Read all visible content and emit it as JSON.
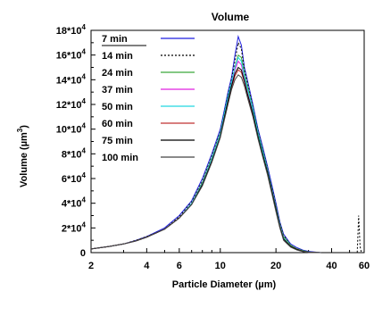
{
  "chart_data": {
    "type": "line",
    "title": "Volume",
    "xlabel": "Particle Diameter (µm)",
    "ylabel_base": "Volume (µm",
    "ylabel_sup": "3",
    "ylabel_end": ")",
    "x_scale": "log",
    "xlim": [
      2,
      60
    ],
    "ylim": [
      0,
      180000
    ],
    "x_ticks": [
      {
        "value": 2,
        "label": "2"
      },
      {
        "value": 4,
        "label": "4"
      },
      {
        "value": 6,
        "label": "6"
      },
      {
        "value": 10,
        "label": "10"
      },
      {
        "value": 20,
        "label": "20"
      },
      {
        "value": 40,
        "label": "40"
      },
      {
        "value": 60,
        "label": "60"
      }
    ],
    "y_ticks": [
      {
        "value": 0,
        "base": "0",
        "exp": ""
      },
      {
        "value": 20000,
        "base": "2*10",
        "exp": "4"
      },
      {
        "value": 40000,
        "base": "4*10",
        "exp": "4"
      },
      {
        "value": 60000,
        "base": "6*10",
        "exp": "4"
      },
      {
        "value": 80000,
        "base": "8*10",
        "exp": "4"
      },
      {
        "value": 100000,
        "base": "10*10",
        "exp": "4"
      },
      {
        "value": 120000,
        "base": "12*10",
        "exp": "4"
      },
      {
        "value": 140000,
        "base": "14*10",
        "exp": "4"
      },
      {
        "value": 160000,
        "base": "16*10",
        "exp": "4"
      },
      {
        "value": 180000,
        "base": "18*10",
        "exp": "4"
      }
    ],
    "legend_placement": "top-left",
    "grid": false,
    "series": [
      {
        "name": "7 min",
        "color": "#1f1fe0",
        "dash": "",
        "x": [
          2,
          2.5,
          3,
          3.5,
          4,
          5,
          6,
          7,
          8,
          9,
          10,
          10.5,
          11,
          11.5,
          12,
          12.5,
          13,
          13.5,
          14,
          15,
          16,
          17,
          18,
          19,
          20,
          21,
          22,
          24,
          26,
          28,
          30,
          35
        ],
        "y": [
          3000,
          5000,
          7000,
          10000,
          13000,
          20000,
          30000,
          42000,
          60000,
          80000,
          100000,
          115000,
          130000,
          142000,
          160000,
          175000,
          168000,
          150000,
          140000,
          120000,
          100000,
          85000,
          70000,
          55000,
          40000,
          25000,
          15000,
          7000,
          4000,
          2000,
          1000,
          0
        ]
      },
      {
        "name": "14 min",
        "color": "#000000",
        "dash": "2,2",
        "x": [
          2,
          2.5,
          3,
          3.5,
          4,
          5,
          6,
          7,
          8,
          9,
          10,
          10.5,
          11,
          11.5,
          12,
          12.5,
          13,
          13.5,
          14,
          15,
          16,
          17,
          18,
          19,
          20,
          21,
          22,
          24,
          26,
          28,
          30,
          35,
          55,
          56,
          57,
          58
        ],
        "y": [
          3000,
          5000,
          7000,
          10000,
          13000,
          19000,
          29000,
          41000,
          58000,
          78000,
          98000,
          113000,
          128000,
          140000,
          155000,
          170000,
          165000,
          148000,
          138000,
          118000,
          98000,
          83000,
          68000,
          53000,
          38000,
          24000,
          14000,
          6000,
          3000,
          1500,
          500,
          0,
          0,
          30000,
          5000,
          0
        ]
      },
      {
        "name": "24 min",
        "color": "#3aa83a",
        "dash": "",
        "x": [
          2,
          2.5,
          3,
          3.5,
          4,
          5,
          6,
          7,
          8,
          9,
          10,
          10.5,
          11,
          11.5,
          12,
          12.5,
          13,
          13.5,
          14,
          15,
          16,
          17,
          18,
          19,
          20,
          21,
          22,
          24,
          26,
          28,
          30,
          35
        ],
        "y": [
          3000,
          5000,
          7000,
          9500,
          12500,
          19000,
          28000,
          40000,
          57000,
          77000,
          97000,
          112000,
          126000,
          138000,
          150000,
          160000,
          158000,
          145000,
          135000,
          117000,
          97000,
          82000,
          67000,
          52000,
          37000,
          23000,
          13000,
          6000,
          3000,
          1500,
          500,
          0
        ]
      },
      {
        "name": "37 min",
        "color": "#e020e0",
        "dash": "",
        "x": [
          2,
          2.5,
          3,
          3.5,
          4,
          5,
          6,
          7,
          8,
          9,
          10,
          10.5,
          11,
          11.5,
          12,
          12.5,
          13,
          13.5,
          14,
          15,
          16,
          17,
          18,
          19,
          20,
          21,
          22,
          24,
          26,
          28,
          30,
          35
        ],
        "y": [
          3000,
          5000,
          7000,
          9500,
          12500,
          19000,
          28000,
          40000,
          56000,
          76000,
          96000,
          111000,
          125000,
          137000,
          148000,
          155000,
          152000,
          142000,
          132000,
          115000,
          95000,
          80000,
          66000,
          51000,
          36000,
          22000,
          12000,
          5000,
          2500,
          1000,
          300,
          0
        ]
      },
      {
        "name": "50 min",
        "color": "#20d8e0",
        "dash": "",
        "x": [
          2,
          2.5,
          3,
          3.5,
          4,
          5,
          6,
          7,
          8,
          9,
          10,
          10.5,
          11,
          11.5,
          12,
          12.5,
          13,
          13.5,
          14,
          15,
          16,
          17,
          18,
          19,
          20,
          21,
          22,
          24,
          26,
          28,
          30,
          35
        ],
        "y": [
          3000,
          5000,
          7000,
          9500,
          12500,
          19000,
          28000,
          40000,
          56000,
          76000,
          96000,
          112000,
          126000,
          138000,
          150000,
          158000,
          155000,
          143000,
          133000,
          116000,
          96000,
          81000,
          66000,
          51000,
          36000,
          22000,
          12000,
          5000,
          2500,
          1000,
          300,
          0
        ]
      },
      {
        "name": "60 min",
        "color": "#c03030",
        "dash": "",
        "x": [
          2,
          2.5,
          3,
          3.5,
          4,
          5,
          6,
          7,
          8,
          9,
          10,
          10.5,
          11,
          11.5,
          12,
          12.5,
          13,
          13.5,
          14,
          15,
          16,
          17,
          18,
          19,
          20,
          21,
          22,
          24,
          26,
          28,
          30,
          35
        ],
        "y": [
          3000,
          5000,
          7000,
          9500,
          12500,
          19000,
          28000,
          39000,
          55000,
          74000,
          94000,
          109000,
          122000,
          134000,
          143000,
          148000,
          146000,
          138000,
          128000,
          112000,
          93000,
          78000,
          64000,
          49000,
          34000,
          21000,
          11000,
          5000,
          2500,
          1000,
          300,
          0
        ]
      },
      {
        "name": "75 min",
        "color": "#000000",
        "dash": "",
        "x": [
          2,
          2.5,
          3,
          3.5,
          4,
          5,
          6,
          7,
          8,
          9,
          10,
          10.5,
          11,
          11.5,
          12,
          12.5,
          13,
          13.5,
          14,
          15,
          16,
          17,
          18,
          19,
          20,
          21,
          22,
          24,
          26,
          28,
          30,
          35
        ],
        "y": [
          3000,
          5000,
          7000,
          9500,
          12500,
          19000,
          28000,
          39000,
          55000,
          74000,
          94000,
          109000,
          123000,
          135000,
          145000,
          150000,
          148000,
          139000,
          129000,
          113000,
          94000,
          79000,
          65000,
          50000,
          35000,
          21000,
          11000,
          5000,
          2500,
          1000,
          300,
          0
        ]
      },
      {
        "name": "100 min",
        "color": "#444444",
        "dash": "",
        "x": [
          2,
          2.5,
          3,
          3.5,
          4,
          5,
          6,
          7,
          8,
          9,
          10,
          10.5,
          11,
          11.5,
          12,
          12.5,
          13,
          13.5,
          14,
          15,
          16,
          17,
          18,
          19,
          20,
          21,
          22,
          24,
          26,
          28,
          30,
          35
        ],
        "y": [
          3000,
          5000,
          7000,
          9500,
          12500,
          19000,
          28000,
          39000,
          54000,
          73000,
          93000,
          107000,
          120000,
          132000,
          140000,
          144000,
          142000,
          135000,
          126000,
          110000,
          92000,
          77000,
          63000,
          48000,
          33000,
          20000,
          10000,
          4500,
          2000,
          800,
          200,
          0
        ]
      }
    ]
  }
}
